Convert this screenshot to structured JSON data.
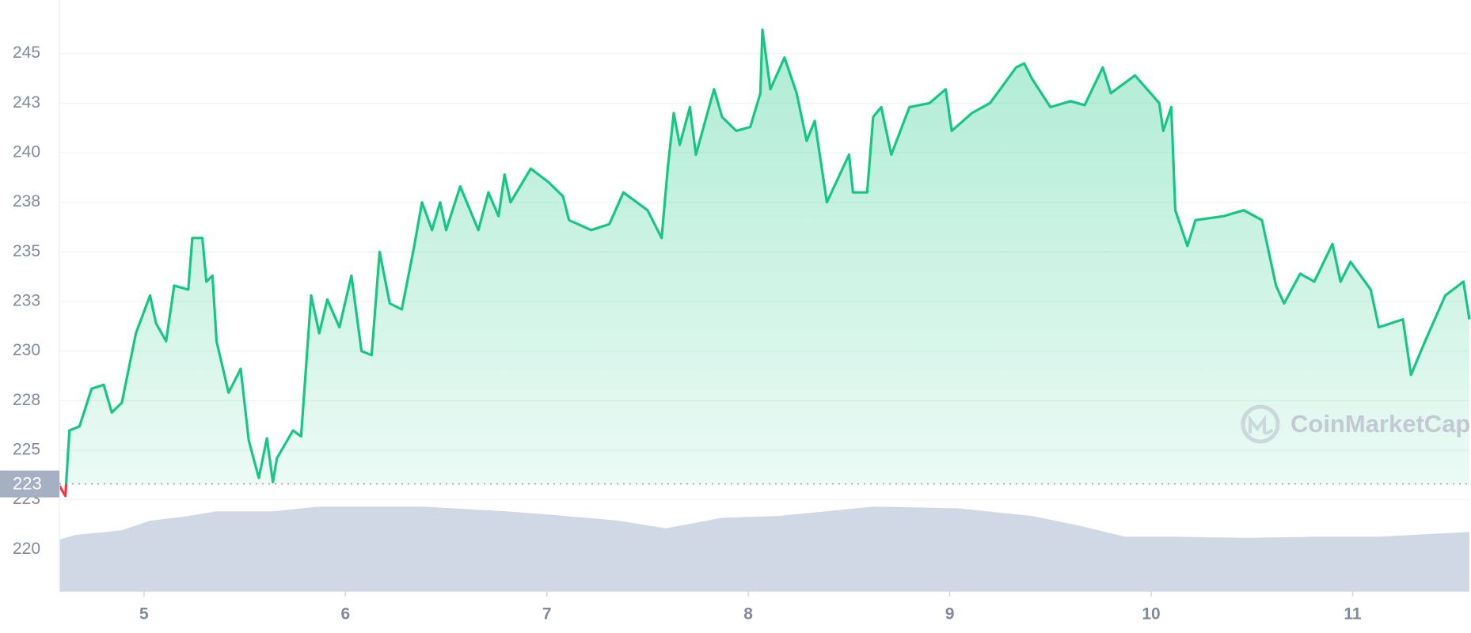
{
  "chart_data": {
    "type": "line",
    "xlim": [
      4.58,
      11.58
    ],
    "xticks": [
      5,
      6,
      7,
      8,
      9,
      10,
      11
    ],
    "ylim": [
      217.9,
      247.7
    ],
    "yticks": [
      220,
      {
        "value": 222.5,
        "label": "223"
      },
      225,
      {
        "value": 227.5,
        "label": "228"
      },
      230,
      {
        "value": 232.5,
        "label": "233"
      },
      235,
      {
        "value": 237.5,
        "label": "238"
      },
      240,
      {
        "value": 242.5,
        "label": "243"
      },
      245
    ],
    "y2lim": [
      0,
      100
    ],
    "grid": true,
    "reference": {
      "value": 223.3,
      "label": "223"
    },
    "down_color": "#ea3943",
    "watermark": "CoinMarketCap",
    "series": [
      {
        "color": "#16c784",
        "x": [
          4.58,
          4.61,
          4.63,
          4.68,
          4.74,
          4.8,
          4.84,
          4.89,
          4.96,
          5.03,
          5.06,
          5.11,
          5.15,
          5.22,
          5.24,
          5.29,
          5.31,
          5.34,
          5.36,
          5.42,
          5.48,
          5.52,
          5.57,
          5.61,
          5.64,
          5.66,
          5.74,
          5.78,
          5.83,
          5.87,
          5.91,
          5.97,
          6.03,
          6.08,
          6.13,
          6.17,
          6.22,
          6.28,
          6.34,
          6.38,
          6.43,
          6.47,
          6.5,
          6.57,
          6.66,
          6.71,
          6.76,
          6.79,
          6.82,
          6.92,
          7.01,
          7.08,
          7.11,
          7.22,
          7.31,
          7.38,
          7.5,
          7.57,
          7.6,
          7.63,
          7.66,
          7.71,
          7.74,
          7.83,
          7.87,
          7.94,
          8.01,
          8.06,
          8.07,
          8.11,
          8.18,
          8.24,
          8.29,
          8.33,
          8.39,
          8.5,
          8.52,
          8.59,
          8.62,
          8.66,
          8.71,
          8.8,
          8.9,
          8.98,
          9.01,
          9.11,
          9.2,
          9.33,
          9.37,
          9.41,
          9.5,
          9.6,
          9.67,
          9.76,
          9.8,
          9.92,
          10.04,
          10.06,
          10.1,
          10.12,
          10.18,
          10.22,
          10.36,
          10.46,
          10.55,
          10.62,
          10.66,
          10.74,
          10.81,
          10.9,
          10.94,
          10.99,
          11.09,
          11.13,
          11.25,
          11.29,
          11.36,
          11.46,
          11.55,
          11.58
        ],
        "values": [
          223.2,
          222.7,
          226.0,
          226.2,
          228.1,
          228.3,
          226.9,
          227.4,
          230.9,
          232.8,
          231.4,
          230.5,
          233.3,
          233.1,
          235.7,
          235.7,
          233.5,
          233.8,
          230.5,
          227.9,
          229.1,
          225.5,
          223.6,
          225.6,
          223.4,
          224.6,
          226.0,
          225.7,
          232.8,
          230.9,
          232.6,
          231.2,
          233.8,
          230.0,
          229.8,
          235.0,
          232.4,
          232.1,
          235.2,
          237.5,
          236.1,
          237.5,
          236.1,
          238.3,
          236.1,
          238.0,
          236.8,
          238.9,
          237.5,
          239.2,
          238.5,
          237.8,
          236.6,
          236.1,
          236.4,
          238.0,
          237.1,
          235.7,
          239.2,
          242.0,
          240.4,
          242.3,
          239.9,
          243.2,
          241.8,
          241.1,
          241.3,
          243.0,
          246.2,
          243.2,
          244.8,
          243.0,
          240.6,
          241.6,
          237.5,
          239.9,
          238.0,
          238.0,
          241.8,
          242.3,
          239.9,
          242.3,
          242.5,
          243.2,
          241.1,
          242.0,
          242.5,
          244.3,
          244.5,
          243.7,
          242.3,
          242.6,
          242.4,
          244.3,
          243.0,
          243.9,
          242.5,
          241.1,
          242.3,
          237.1,
          235.3,
          236.6,
          236.8,
          237.1,
          236.6,
          233.3,
          232.4,
          233.9,
          233.5,
          235.4,
          233.5,
          234.5,
          233.1,
          231.2,
          231.6,
          228.8,
          230.5,
          232.8,
          233.5,
          231.6
        ]
      },
      {
        "color": "#cfd6e4",
        "axis": "y2",
        "x": [
          4.58,
          4.66,
          4.89,
          5.03,
          5.22,
          5.36,
          5.64,
          5.87,
          6.15,
          6.38,
          6.8,
          6.99,
          7.36,
          7.59,
          7.87,
          8.15,
          8.62,
          9.04,
          9.41,
          9.64,
          9.87,
          10.11,
          10.48,
          10.81,
          11.13,
          11.58
        ],
        "values": [
          8.7,
          9.5,
          10.3,
          11.9,
          12.7,
          13.5,
          13.5,
          14.3,
          14.3,
          14.3,
          13.5,
          13.0,
          11.9,
          10.6,
          12.4,
          12.7,
          14.3,
          14.0,
          12.7,
          11.1,
          9.2,
          9.2,
          9.0,
          9.2,
          9.2,
          10.0
        ]
      }
    ]
  }
}
